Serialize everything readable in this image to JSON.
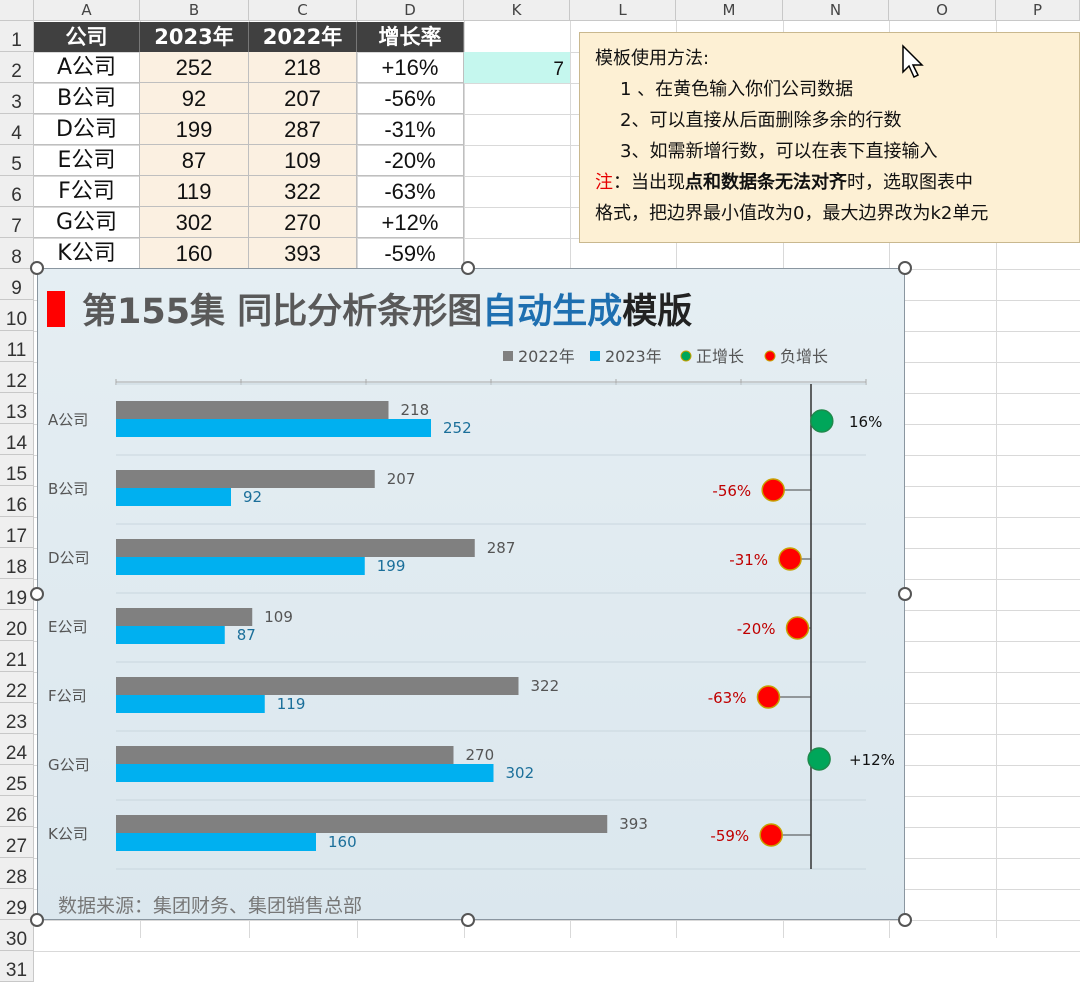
{
  "columns": [
    "A",
    "B",
    "C",
    "D",
    "K",
    "L",
    "M",
    "N",
    "O",
    "P"
  ],
  "rows": [
    "1",
    "2",
    "3",
    "4",
    "5",
    "6",
    "7",
    "8",
    "9",
    "10",
    "11",
    "12",
    "13",
    "14",
    "15",
    "16",
    "17",
    "18",
    "19",
    "20",
    "21",
    "22",
    "23",
    "24",
    "25",
    "26",
    "27",
    "28",
    "29",
    "30",
    "31"
  ],
  "table": {
    "headers": [
      "公司",
      "2023年",
      "2022年",
      "增长率"
    ],
    "rows": [
      [
        "A公司",
        "252",
        "218",
        "+16%"
      ],
      [
        "B公司",
        "92",
        "207",
        "-56%"
      ],
      [
        "D公司",
        "199",
        "287",
        "-31%"
      ],
      [
        "E公司",
        "87",
        "109",
        "-20%"
      ],
      [
        "F公司",
        "119",
        "322",
        "-63%"
      ],
      [
        "G公司",
        "302",
        "270",
        "+12%"
      ],
      [
        "K公司",
        "160",
        "393",
        "-59%"
      ]
    ]
  },
  "k2_value": "7",
  "note": {
    "title": "模板使用方法:",
    "line1": "1 、在黄色输入你们公司数据",
    "line2": "2、可以直接从后面删除多余的行数",
    "line3": "3、如需新增行数，可以在表下直接输入",
    "line4_prefix": "注",
    "line4_a": "：当出现",
    "line4_bold": "点和数据条无法对齐",
    "line4_b": "时，选取图表中",
    "line5": "格式，把边界最小值改为0，最大边界改为k2单元"
  },
  "chart_title": {
    "part1": "第155集 同比分析条形图",
    "part2": "自动生成",
    "part3": "模版"
  },
  "chart_source": "数据来源：集团财务、集团销售总部",
  "colors": {
    "bar_2022": "#808080",
    "bar_2023": "#00b0f0",
    "positive": "#00a65a",
    "negative": "#ff0000",
    "title_blue": "#1e6fb0",
    "title_gray": "#595959"
  },
  "chart_data": {
    "type": "bar",
    "orientation": "horizontal",
    "categories": [
      "A公司",
      "B公司",
      "D公司",
      "E公司",
      "F公司",
      "G公司",
      "K公司"
    ],
    "series": [
      {
        "name": "2022年",
        "values": [
          218,
          207,
          287,
          109,
          322,
          270,
          393
        ]
      },
      {
        "name": "2023年",
        "values": [
          252,
          92,
          199,
          87,
          119,
          302,
          160
        ]
      }
    ],
    "growth": {
      "labels": [
        "16%",
        "-56%",
        "-31%",
        "-20%",
        "-63%",
        "+12%",
        "-59%"
      ],
      "values": [
        16,
        -56,
        -31,
        -20,
        -63,
        12,
        -59
      ],
      "legend_positive": "正增长",
      "legend_negative": "负增长"
    },
    "xlim": [
      0,
      600
    ],
    "legend": "top-right"
  }
}
